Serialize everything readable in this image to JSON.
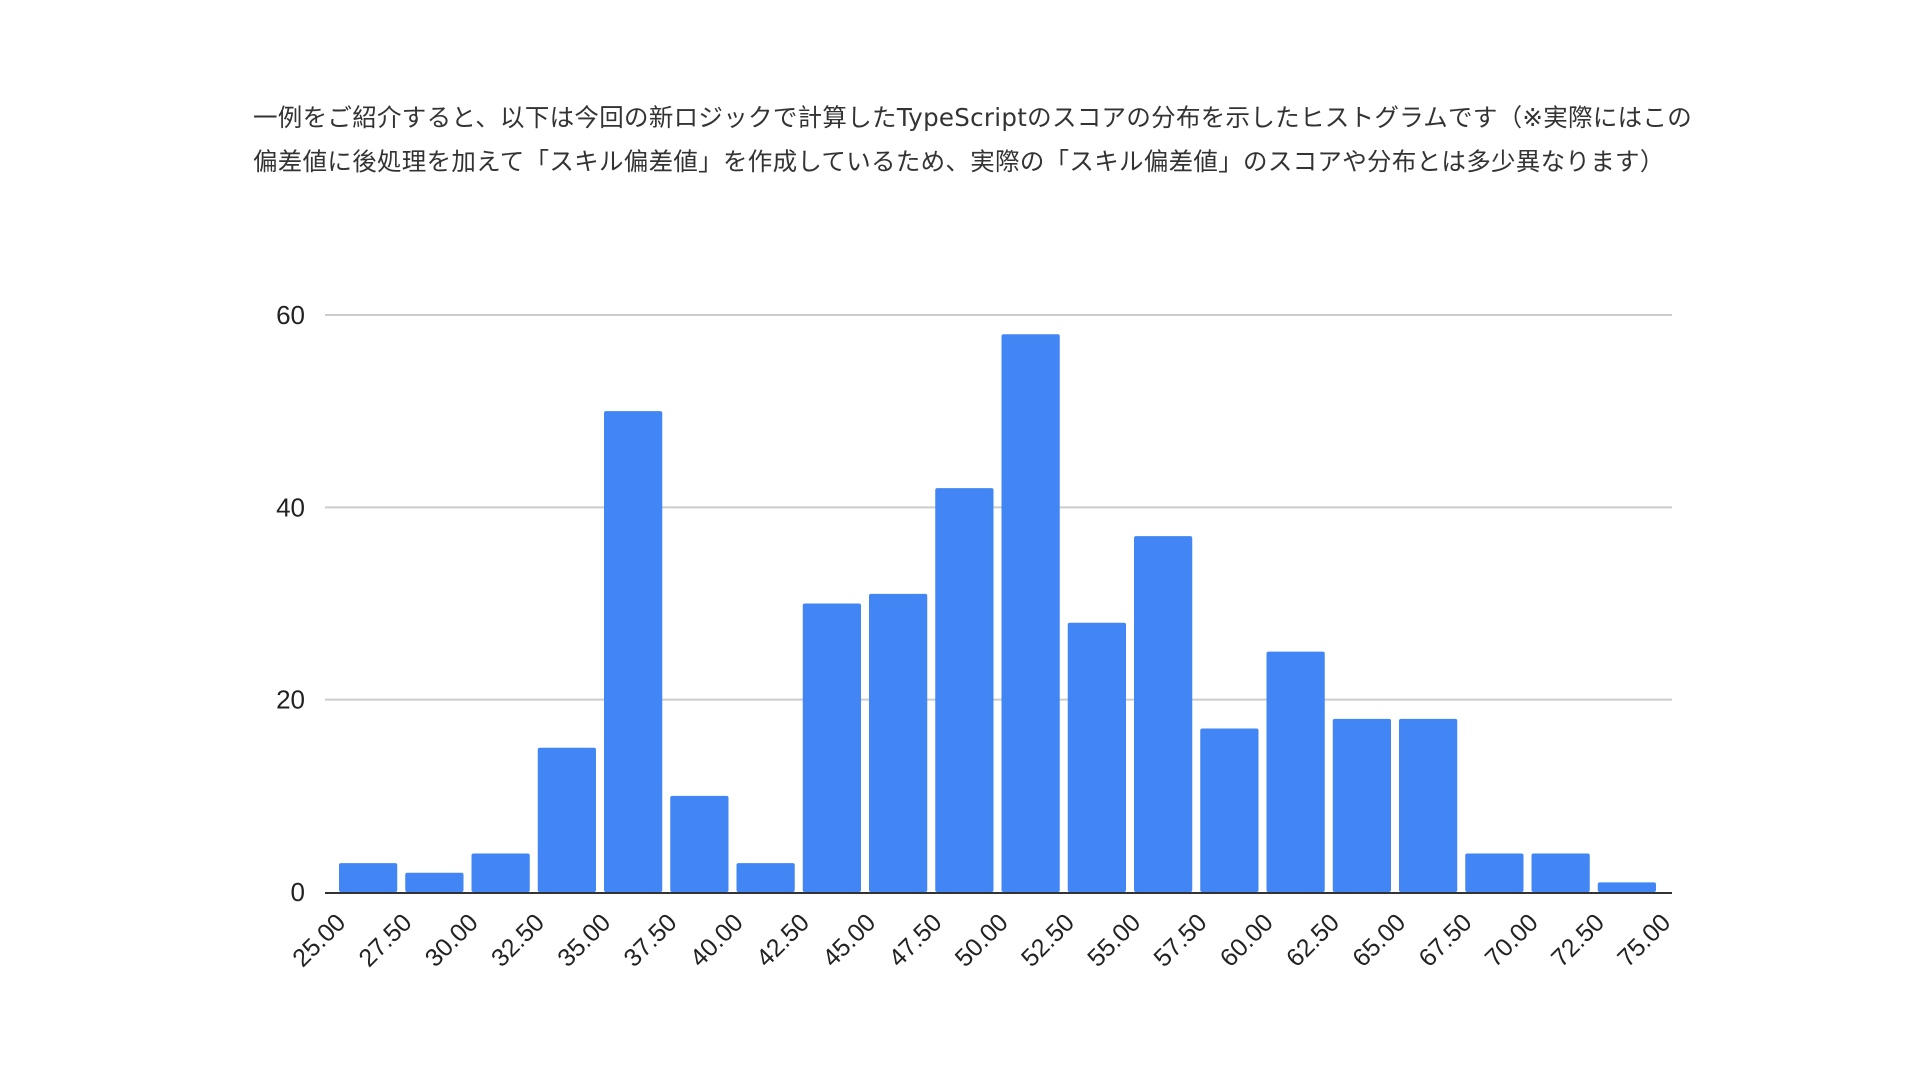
{
  "intro_text": "一例をご紹介すると、以下は今回の新ロジックで計算したTypeScriptのスコアの分布を示したヒストグラムです（※実際にはこの偏差値に後処理を加えて「スキル偏差値」を作成しているため、実際の「スキル偏差値」のスコアや分布とは多少異なります）",
  "chart_data": {
    "type": "bar",
    "title": "",
    "xlabel": "",
    "ylabel": "",
    "ylim": [
      0,
      60
    ],
    "y_ticks": [
      0,
      20,
      40,
      60
    ],
    "x_ticks": [
      "25.00",
      "27.50",
      "30.00",
      "32.50",
      "35.00",
      "37.50",
      "40.00",
      "42.50",
      "45.00",
      "47.50",
      "50.00",
      "52.50",
      "55.00",
      "57.50",
      "60.00",
      "62.50",
      "65.00",
      "67.50",
      "70.00",
      "72.50",
      "75.00"
    ],
    "bin_start": 25,
    "bin_width": 2.5,
    "values": [
      3,
      2,
      4,
      15,
      50,
      10,
      3,
      30,
      31,
      42,
      58,
      28,
      37,
      17,
      25,
      18,
      18,
      4,
      4,
      1
    ],
    "grid": true,
    "legend": "none",
    "bar_color": "#4285f4",
    "grid_color": "#cccccc"
  }
}
